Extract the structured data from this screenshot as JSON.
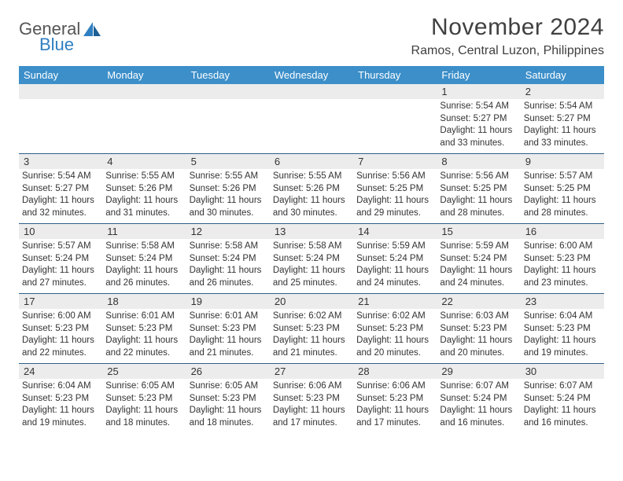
{
  "brand": {
    "line1": "General",
    "line2": "Blue",
    "text_color": "#555555",
    "accent_color": "#2f7fc1"
  },
  "title": "November 2024",
  "location": "Ramos, Central Luzon, Philippines",
  "header_bg": "#3c8fc9",
  "header_fg": "#ffffff",
  "daynum_bg": "#ececec",
  "rule_color": "#2f5f8a",
  "day_names": [
    "Sunday",
    "Monday",
    "Tuesday",
    "Wednesday",
    "Thursday",
    "Friday",
    "Saturday"
  ],
  "weeks": [
    [
      {
        "n": "",
        "sr": "",
        "ss": "",
        "dl": ""
      },
      {
        "n": "",
        "sr": "",
        "ss": "",
        "dl": ""
      },
      {
        "n": "",
        "sr": "",
        "ss": "",
        "dl": ""
      },
      {
        "n": "",
        "sr": "",
        "ss": "",
        "dl": ""
      },
      {
        "n": "",
        "sr": "",
        "ss": "",
        "dl": ""
      },
      {
        "n": "1",
        "sr": "Sunrise: 5:54 AM",
        "ss": "Sunset: 5:27 PM",
        "dl": "Daylight: 11 hours and 33 minutes."
      },
      {
        "n": "2",
        "sr": "Sunrise: 5:54 AM",
        "ss": "Sunset: 5:27 PM",
        "dl": "Daylight: 11 hours and 33 minutes."
      }
    ],
    [
      {
        "n": "3",
        "sr": "Sunrise: 5:54 AM",
        "ss": "Sunset: 5:27 PM",
        "dl": "Daylight: 11 hours and 32 minutes."
      },
      {
        "n": "4",
        "sr": "Sunrise: 5:55 AM",
        "ss": "Sunset: 5:26 PM",
        "dl": "Daylight: 11 hours and 31 minutes."
      },
      {
        "n": "5",
        "sr": "Sunrise: 5:55 AM",
        "ss": "Sunset: 5:26 PM",
        "dl": "Daylight: 11 hours and 30 minutes."
      },
      {
        "n": "6",
        "sr": "Sunrise: 5:55 AM",
        "ss": "Sunset: 5:26 PM",
        "dl": "Daylight: 11 hours and 30 minutes."
      },
      {
        "n": "7",
        "sr": "Sunrise: 5:56 AM",
        "ss": "Sunset: 5:25 PM",
        "dl": "Daylight: 11 hours and 29 minutes."
      },
      {
        "n": "8",
        "sr": "Sunrise: 5:56 AM",
        "ss": "Sunset: 5:25 PM",
        "dl": "Daylight: 11 hours and 28 minutes."
      },
      {
        "n": "9",
        "sr": "Sunrise: 5:57 AM",
        "ss": "Sunset: 5:25 PM",
        "dl": "Daylight: 11 hours and 28 minutes."
      }
    ],
    [
      {
        "n": "10",
        "sr": "Sunrise: 5:57 AM",
        "ss": "Sunset: 5:24 PM",
        "dl": "Daylight: 11 hours and 27 minutes."
      },
      {
        "n": "11",
        "sr": "Sunrise: 5:58 AM",
        "ss": "Sunset: 5:24 PM",
        "dl": "Daylight: 11 hours and 26 minutes."
      },
      {
        "n": "12",
        "sr": "Sunrise: 5:58 AM",
        "ss": "Sunset: 5:24 PM",
        "dl": "Daylight: 11 hours and 26 minutes."
      },
      {
        "n": "13",
        "sr": "Sunrise: 5:58 AM",
        "ss": "Sunset: 5:24 PM",
        "dl": "Daylight: 11 hours and 25 minutes."
      },
      {
        "n": "14",
        "sr": "Sunrise: 5:59 AM",
        "ss": "Sunset: 5:24 PM",
        "dl": "Daylight: 11 hours and 24 minutes."
      },
      {
        "n": "15",
        "sr": "Sunrise: 5:59 AM",
        "ss": "Sunset: 5:24 PM",
        "dl": "Daylight: 11 hours and 24 minutes."
      },
      {
        "n": "16",
        "sr": "Sunrise: 6:00 AM",
        "ss": "Sunset: 5:23 PM",
        "dl": "Daylight: 11 hours and 23 minutes."
      }
    ],
    [
      {
        "n": "17",
        "sr": "Sunrise: 6:00 AM",
        "ss": "Sunset: 5:23 PM",
        "dl": "Daylight: 11 hours and 22 minutes."
      },
      {
        "n": "18",
        "sr": "Sunrise: 6:01 AM",
        "ss": "Sunset: 5:23 PM",
        "dl": "Daylight: 11 hours and 22 minutes."
      },
      {
        "n": "19",
        "sr": "Sunrise: 6:01 AM",
        "ss": "Sunset: 5:23 PM",
        "dl": "Daylight: 11 hours and 21 minutes."
      },
      {
        "n": "20",
        "sr": "Sunrise: 6:02 AM",
        "ss": "Sunset: 5:23 PM",
        "dl": "Daylight: 11 hours and 21 minutes."
      },
      {
        "n": "21",
        "sr": "Sunrise: 6:02 AM",
        "ss": "Sunset: 5:23 PM",
        "dl": "Daylight: 11 hours and 20 minutes."
      },
      {
        "n": "22",
        "sr": "Sunrise: 6:03 AM",
        "ss": "Sunset: 5:23 PM",
        "dl": "Daylight: 11 hours and 20 minutes."
      },
      {
        "n": "23",
        "sr": "Sunrise: 6:04 AM",
        "ss": "Sunset: 5:23 PM",
        "dl": "Daylight: 11 hours and 19 minutes."
      }
    ],
    [
      {
        "n": "24",
        "sr": "Sunrise: 6:04 AM",
        "ss": "Sunset: 5:23 PM",
        "dl": "Daylight: 11 hours and 19 minutes."
      },
      {
        "n": "25",
        "sr": "Sunrise: 6:05 AM",
        "ss": "Sunset: 5:23 PM",
        "dl": "Daylight: 11 hours and 18 minutes."
      },
      {
        "n": "26",
        "sr": "Sunrise: 6:05 AM",
        "ss": "Sunset: 5:23 PM",
        "dl": "Daylight: 11 hours and 18 minutes."
      },
      {
        "n": "27",
        "sr": "Sunrise: 6:06 AM",
        "ss": "Sunset: 5:23 PM",
        "dl": "Daylight: 11 hours and 17 minutes."
      },
      {
        "n": "28",
        "sr": "Sunrise: 6:06 AM",
        "ss": "Sunset: 5:23 PM",
        "dl": "Daylight: 11 hours and 17 minutes."
      },
      {
        "n": "29",
        "sr": "Sunrise: 6:07 AM",
        "ss": "Sunset: 5:24 PM",
        "dl": "Daylight: 11 hours and 16 minutes."
      },
      {
        "n": "30",
        "sr": "Sunrise: 6:07 AM",
        "ss": "Sunset: 5:24 PM",
        "dl": "Daylight: 11 hours and 16 minutes."
      }
    ]
  ]
}
